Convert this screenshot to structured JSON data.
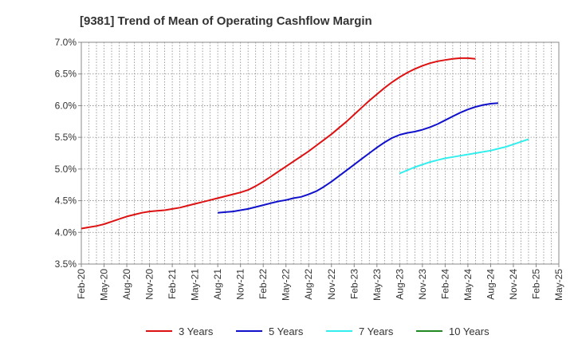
{
  "chart_data": {
    "type": "line",
    "title": "[9381]  Trend of Mean of Operating Cashflow Margin",
    "xlabel": "",
    "ylabel": "",
    "ylim": [
      3.5,
      7.0
    ],
    "yticks": [
      "3.5%",
      "4.0%",
      "4.5%",
      "5.0%",
      "5.5%",
      "6.0%",
      "6.5%",
      "7.0%"
    ],
    "x_tick_labels": [
      "Feb-20",
      "May-20",
      "Aug-20",
      "Nov-20",
      "Feb-21",
      "May-21",
      "Aug-21",
      "Nov-21",
      "Feb-22",
      "May-22",
      "Aug-22",
      "Nov-22",
      "Feb-23",
      "May-23",
      "Aug-23",
      "Nov-23",
      "Feb-24",
      "May-24",
      "Aug-24",
      "Nov-24",
      "Feb-25",
      "May-25"
    ],
    "grid": true,
    "legend_position": "bottom",
    "colors": {
      "3 Years": "#dd1111",
      "5 Years": "#1111cc",
      "7 Years": "#33eeee",
      "10 Years": "#228822",
      "grid": "#888888"
    },
    "series": [
      {
        "name": "3 Years",
        "points": [
          [
            0,
            4.06
          ],
          [
            1,
            4.08
          ],
          [
            2,
            4.1
          ],
          [
            3,
            4.13
          ],
          [
            4,
            4.17
          ],
          [
            5,
            4.21
          ],
          [
            6,
            4.25
          ],
          [
            7,
            4.28
          ],
          [
            8,
            4.31
          ],
          [
            9,
            4.33
          ],
          [
            10,
            4.34
          ],
          [
            11,
            4.35
          ],
          [
            12,
            4.37
          ],
          [
            13,
            4.39
          ],
          [
            14,
            4.42
          ],
          [
            15,
            4.45
          ],
          [
            16,
            4.48
          ],
          [
            17,
            4.51
          ],
          [
            18,
            4.54
          ],
          [
            19,
            4.57
          ],
          [
            20,
            4.6
          ],
          [
            21,
            4.63
          ],
          [
            22,
            4.67
          ],
          [
            23,
            4.73
          ],
          [
            24,
            4.8
          ],
          [
            25,
            4.88
          ],
          [
            26,
            4.96
          ],
          [
            27,
            5.04
          ],
          [
            28,
            5.12
          ],
          [
            29,
            5.2
          ],
          [
            30,
            5.28
          ],
          [
            31,
            5.37
          ],
          [
            32,
            5.46
          ],
          [
            33,
            5.55
          ],
          [
            34,
            5.65
          ],
          [
            35,
            5.75
          ],
          [
            36,
            5.86
          ],
          [
            37,
            5.97
          ],
          [
            38,
            6.08
          ],
          [
            39,
            6.18
          ],
          [
            40,
            6.28
          ],
          [
            41,
            6.37
          ],
          [
            42,
            6.45
          ],
          [
            43,
            6.52
          ],
          [
            44,
            6.58
          ],
          [
            45,
            6.63
          ],
          [
            46,
            6.67
          ],
          [
            47,
            6.7
          ],
          [
            48,
            6.72
          ],
          [
            49,
            6.74
          ],
          [
            50,
            6.75
          ],
          [
            51,
            6.75
          ],
          [
            52,
            6.74
          ]
        ]
      },
      {
        "name": "5 Years",
        "points": [
          [
            18,
            4.31
          ],
          [
            19,
            4.32
          ],
          [
            20,
            4.33
          ],
          [
            21,
            4.35
          ],
          [
            22,
            4.37
          ],
          [
            23,
            4.4
          ],
          [
            24,
            4.43
          ],
          [
            25,
            4.46
          ],
          [
            26,
            4.49
          ],
          [
            27,
            4.51
          ],
          [
            28,
            4.54
          ],
          [
            29,
            4.56
          ],
          [
            30,
            4.6
          ],
          [
            31,
            4.65
          ],
          [
            32,
            4.72
          ],
          [
            33,
            4.8
          ],
          [
            34,
            4.89
          ],
          [
            35,
            4.98
          ],
          [
            36,
            5.07
          ],
          [
            37,
            5.16
          ],
          [
            38,
            5.25
          ],
          [
            39,
            5.34
          ],
          [
            40,
            5.42
          ],
          [
            41,
            5.49
          ],
          [
            42,
            5.54
          ],
          [
            43,
            5.57
          ],
          [
            44,
            5.59
          ],
          [
            45,
            5.62
          ],
          [
            46,
            5.66
          ],
          [
            47,
            5.71
          ],
          [
            48,
            5.77
          ],
          [
            49,
            5.83
          ],
          [
            50,
            5.89
          ],
          [
            51,
            5.94
          ],
          [
            52,
            5.98
          ],
          [
            53,
            6.01
          ],
          [
            54,
            6.03
          ],
          [
            55,
            6.04
          ]
        ]
      },
      {
        "name": "7 Years",
        "points": [
          [
            42,
            4.93
          ],
          [
            43,
            4.98
          ],
          [
            44,
            5.03
          ],
          [
            45,
            5.07
          ],
          [
            46,
            5.11
          ],
          [
            47,
            5.14
          ],
          [
            48,
            5.17
          ],
          [
            49,
            5.19
          ],
          [
            50,
            5.21
          ],
          [
            51,
            5.23
          ],
          [
            52,
            5.25
          ],
          [
            53,
            5.27
          ],
          [
            54,
            5.29
          ],
          [
            55,
            5.32
          ],
          [
            56,
            5.35
          ],
          [
            57,
            5.39
          ],
          [
            58,
            5.43
          ],
          [
            59,
            5.47
          ]
        ]
      },
      {
        "name": "10 Years",
        "points": []
      }
    ]
  }
}
